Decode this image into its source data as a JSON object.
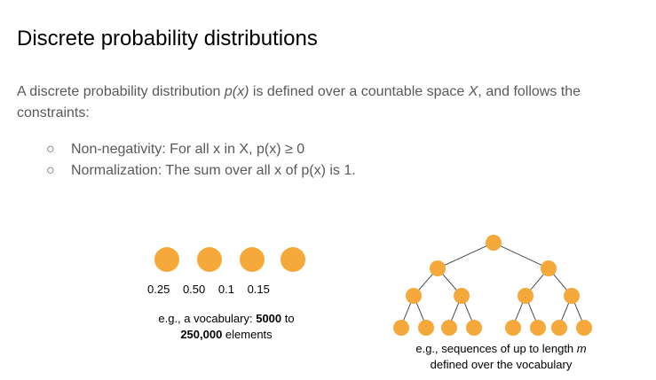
{
  "title": "Discrete probability distributions",
  "intro": {
    "part1": "A discrete probability distribution ",
    "px": "p(x)",
    "part2": " is defined over a countable space ",
    "space": "X",
    "part3": ", and follows the constraints:"
  },
  "bullets": {
    "marker": "○",
    "items": [
      "Non-negativity: For all x in X, p(x) ≥ 0",
      "Normalization: The sum over all x of p(x) is 1."
    ]
  },
  "vocab_example": {
    "probabilities": [
      "0.25",
      "0.50",
      "0.1",
      "0.15"
    ],
    "caption_pre": "e.g., a vocabulary: ",
    "caption_bold1": "5000",
    "caption_mid": " to ",
    "caption_bold2": "250,000",
    "caption_post": " elements"
  },
  "sequence_example": {
    "caption_pre": "e.g., sequences of up to length ",
    "caption_var": "m",
    "caption_post": " defined over the vocabulary"
  },
  "colors": {
    "node_fill": "#f6a93b",
    "edge": "#333333",
    "body_text": "#595959"
  }
}
